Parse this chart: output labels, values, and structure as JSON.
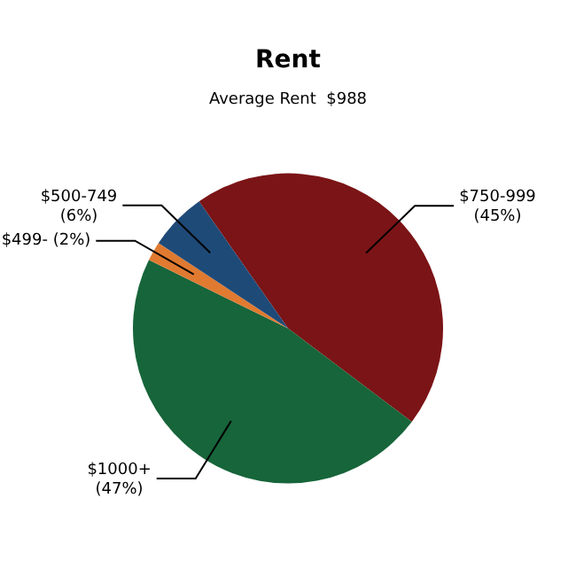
{
  "chart_data": {
    "type": "pie",
    "title": "Rent",
    "subtitle": "Average Rent  $988",
    "categories": [
      "$750-999",
      "$1000+",
      "$499-",
      "$500-749"
    ],
    "values": [
      45,
      47,
      2,
      6
    ],
    "value_labels": [
      "(45%)",
      "(47%)",
      "(2%)",
      "(6%)"
    ],
    "colors": [
      "#7b1416",
      "#17653a",
      "#e07a30",
      "#1e4a78"
    ],
    "legend": false
  }
}
